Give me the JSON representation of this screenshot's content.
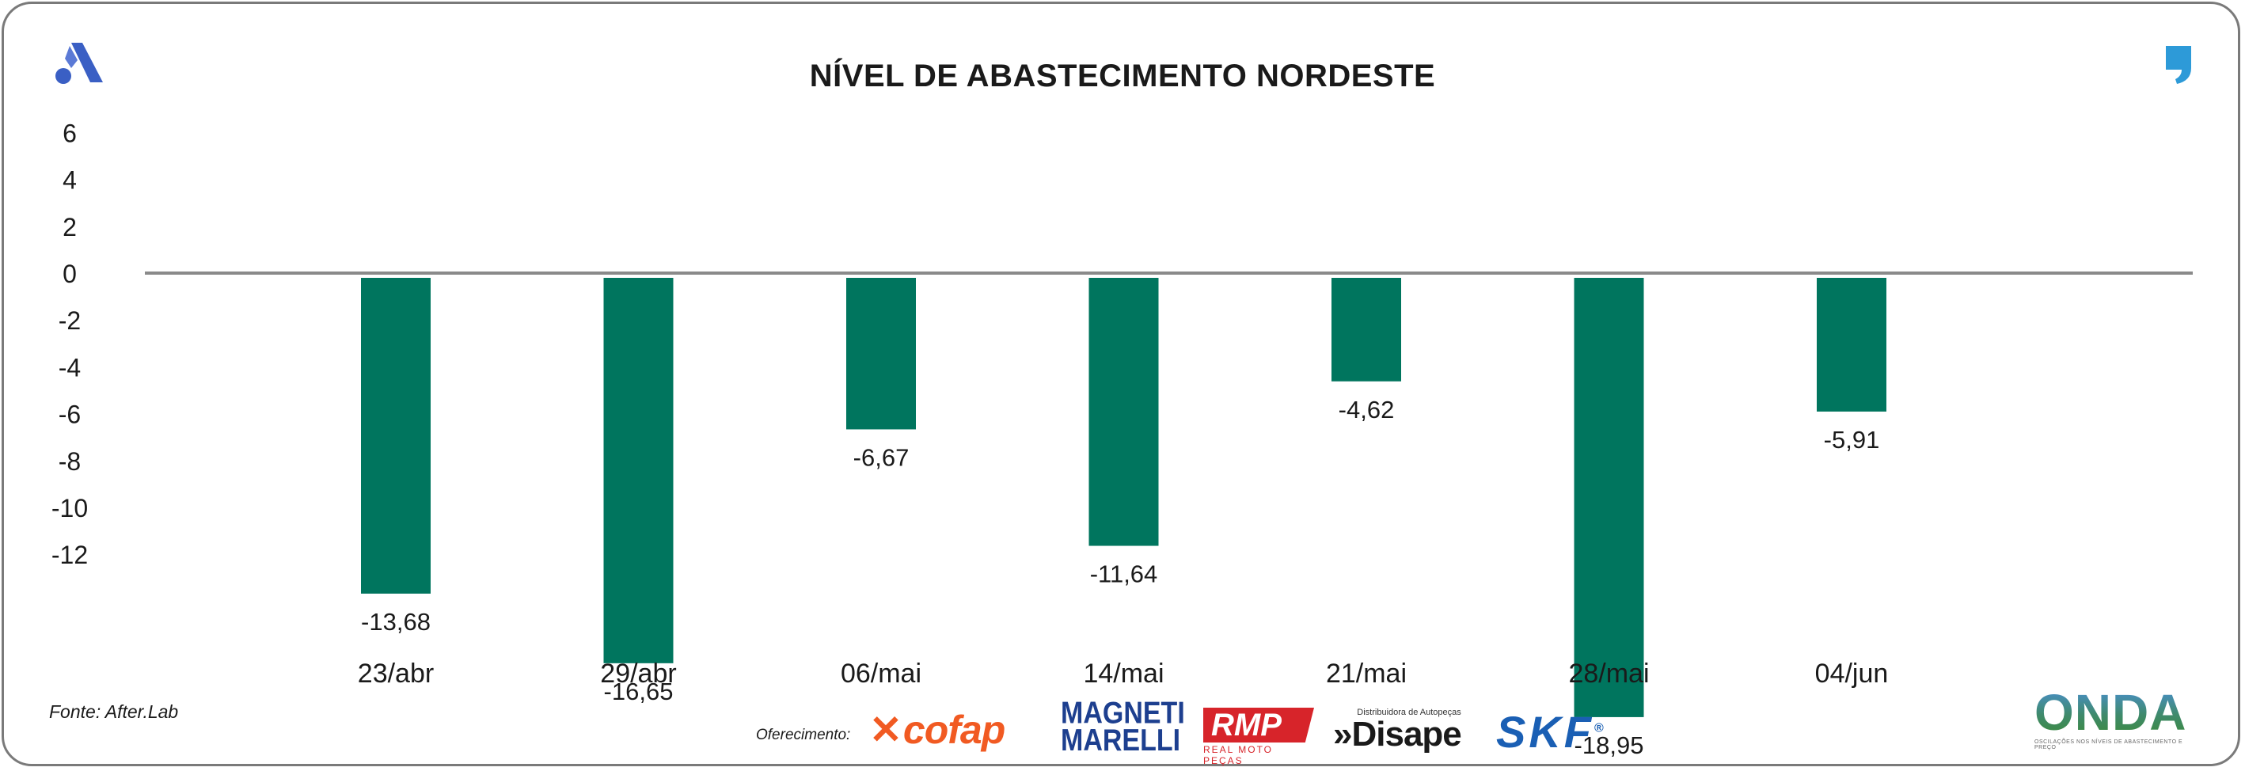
{
  "chart_data": {
    "type": "bar",
    "title": "NÍVEL DE ABASTECIMENTO NORDESTE",
    "categories": [
      "23/abr",
      "29/abr",
      "06/mai",
      "14/mai",
      "21/mai",
      "28/mai",
      "04/jun"
    ],
    "values": [
      -13.68,
      -16.65,
      -6.67,
      -11.64,
      -4.62,
      -18.95,
      -5.91
    ],
    "value_labels": [
      "-13,68",
      "-16,65",
      "-6,67",
      "-11,64",
      "-4,62",
      "-18,95",
      "-5,91"
    ],
    "y_ticks": [
      6,
      4,
      2,
      0,
      -2,
      -4,
      -6,
      -8,
      -10,
      -12
    ],
    "y_tick_labels": [
      "6",
      "4",
      "2",
      "0",
      "-2",
      "-4",
      "-6",
      "-8",
      "-10",
      "-12"
    ],
    "xlabel": "",
    "ylabel": "",
    "legend": "none",
    "grid": false,
    "bar_color": "#00755e"
  },
  "source": "Fonte: After.Lab",
  "sponsors": {
    "label": "Oferecimento:",
    "cofap": "cofap",
    "magneti_line1": "MAGNETI",
    "magneti_line2": "MARELLI",
    "rmp": "RMP",
    "rmp_sub": "REAL MOTO PEÇAS",
    "disape_small": "Distribuidora de Autopeças",
    "disape": "»Disape",
    "skf": "SKF"
  },
  "brand": {
    "onda": "ONDA",
    "onda_sub": "OSCILAÇÕES NOS NÍVEIS DE ABASTECIMENTO E PREÇO",
    "colors": {
      "logo_blue": "#3a5fc4",
      "quote_blue": "#2d9ad8"
    }
  }
}
